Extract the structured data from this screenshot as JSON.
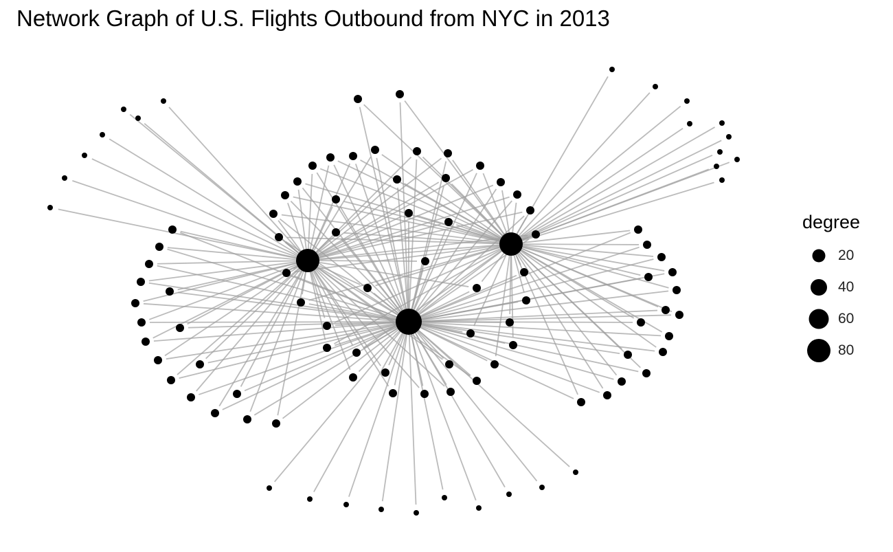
{
  "title": "Network Graph of U.S. Flights Outbound from NYC in 2013",
  "legend": {
    "title": "degree",
    "items": [
      {
        "label": "20",
        "value": 20
      },
      {
        "label": "40",
        "value": 40
      },
      {
        "label": "60",
        "value": 60
      },
      {
        "label": "80",
        "value": 80
      }
    ]
  },
  "colors": {
    "node": "#000000",
    "edge": "#9e9e9e",
    "background": "#ffffff"
  }
}
